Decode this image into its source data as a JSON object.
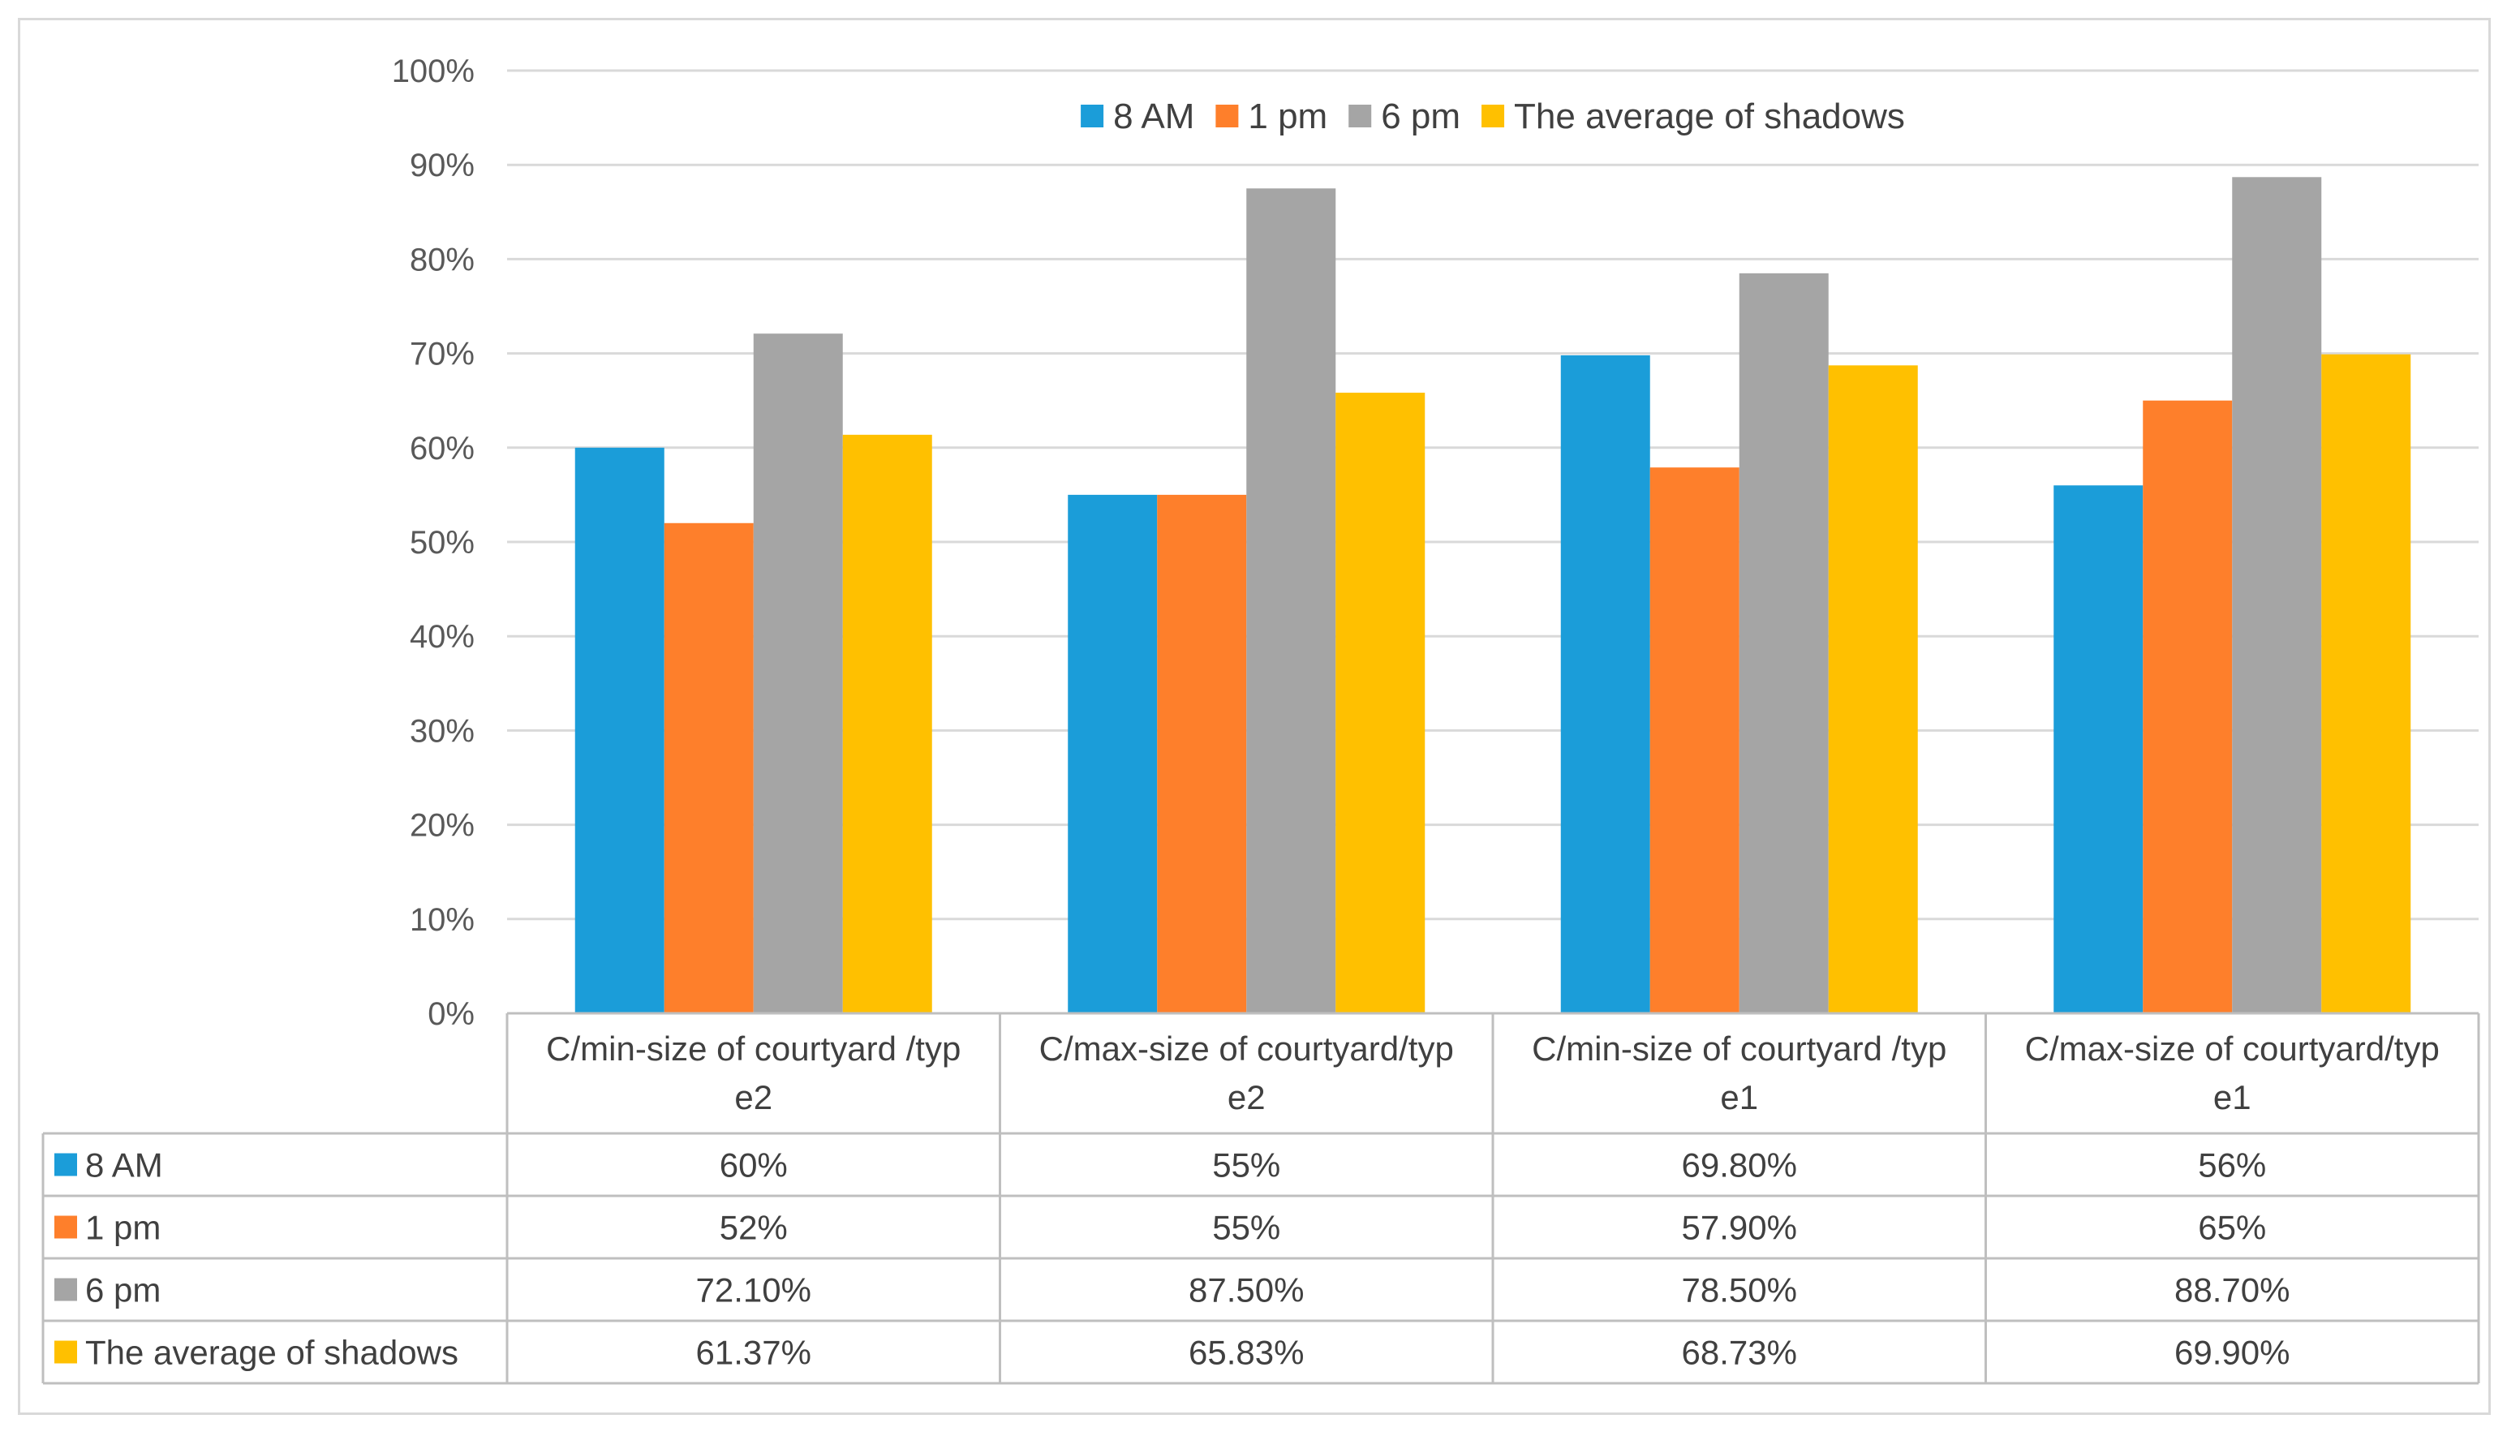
{
  "chart_data": {
    "type": "bar",
    "title": "",
    "xlabel": "",
    "ylabel": "",
    "ylim": [
      0,
      100
    ],
    "y_ticks": [
      "0%",
      "10%",
      "20%",
      "30%",
      "40%",
      "50%",
      "60%",
      "70%",
      "80%",
      "90%",
      "100%"
    ],
    "grid": true,
    "legend_position": "top",
    "categories": [
      [
        "C/min-size of courtyard /typ",
        "e2"
      ],
      [
        "C/max-size of courtyard/typ",
        "e2"
      ],
      [
        "C/min-size of courtyard /typ",
        "e1"
      ],
      [
        "C/max-size of courtyard/typ",
        "e1"
      ]
    ],
    "series": [
      {
        "name": "8 AM",
        "color": "#1b9dd9",
        "values": [
          60,
          55,
          69.8,
          56
        ],
        "labels": [
          "60%",
          "55%",
          "69.80%",
          "56%"
        ]
      },
      {
        "name": "1 pm",
        "color": "#fe7f2b",
        "values": [
          52,
          55,
          57.9,
          65
        ],
        "labels": [
          "52%",
          "55%",
          "57.90%",
          "65%"
        ]
      },
      {
        "name": "6 pm",
        "color": "#a5a5a5",
        "values": [
          72.1,
          87.5,
          78.5,
          88.7
        ],
        "labels": [
          "72.10%",
          "87.50%",
          "78.50%",
          "88.70%"
        ]
      },
      {
        "name": "The average of shadows",
        "color": "#ffc000",
        "values": [
          61.37,
          65.83,
          68.73,
          69.9
        ],
        "labels": [
          "61.37%",
          "65.83%",
          "68.73%",
          "69.90%"
        ]
      }
    ]
  }
}
